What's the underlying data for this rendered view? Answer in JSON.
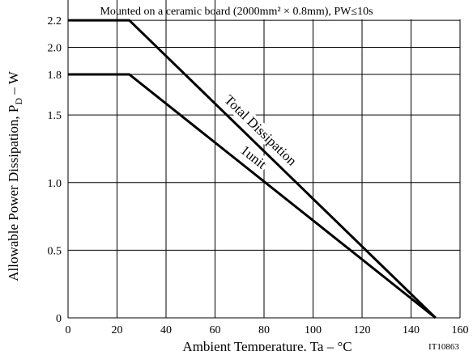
{
  "chart_data": {
    "type": "line",
    "title": "Mounted on a ceramic board (2000mm² × 0.8mm), PW≤10s",
    "xlabel": "Ambient Temperature, Ta – °C",
    "ylabel_main": "Allowable Power Dissipation, P",
    "ylabel_sub": "D",
    "ylabel_unit": " – W",
    "figure_id": "IT10863",
    "xlim": [
      0,
      160
    ],
    "ylim": [
      0,
      2.35
    ],
    "x_ticks": [
      0,
      20,
      40,
      60,
      80,
      100,
      120,
      140,
      160
    ],
    "x_tick_labels": [
      "0",
      "20",
      "40",
      "60",
      "80",
      "100",
      "120",
      "140",
      "160"
    ],
    "y_ticks": [
      0,
      0.5,
      1.0,
      1.5,
      1.8,
      2.0,
      2.2
    ],
    "y_tick_labels": [
      "0",
      "0.5",
      "1.0",
      "1.5",
      "1.8",
      "2.0",
      "2.2"
    ],
    "grid": true,
    "series": [
      {
        "name": "Total Dissipation",
        "x": [
          0,
          25,
          150
        ],
        "y": [
          2.2,
          2.2,
          0
        ]
      },
      {
        "name": "1unit",
        "x": [
          0,
          25,
          150
        ],
        "y": [
          1.8,
          1.8,
          0
        ]
      }
    ]
  }
}
